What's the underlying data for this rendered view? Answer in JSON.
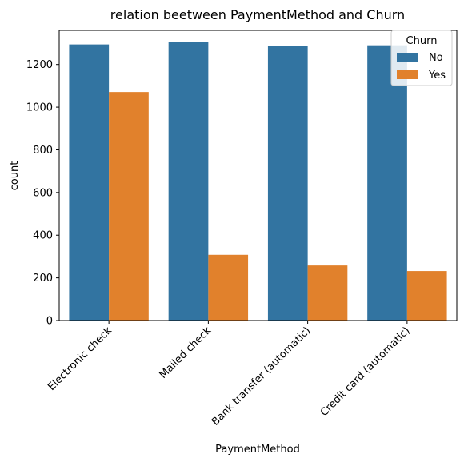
{
  "chart_data": {
    "type": "bar",
    "title": "relation beetween PaymentMethod and Churn",
    "xlabel": "PaymentMethod",
    "ylabel": "count",
    "categories": [
      "Electronic check",
      "Mailed check",
      "Bank transfer (automatic)",
      "Credit card (automatic)"
    ],
    "series": [
      {
        "name": "No",
        "color": "#3274a1",
        "values": [
          1294,
          1304,
          1286,
          1290
        ]
      },
      {
        "name": "Yes",
        "color": "#e1812c",
        "values": [
          1071,
          308,
          258,
          232
        ]
      }
    ],
    "ylim": [
      0,
      1360
    ],
    "yticks": [
      0,
      200,
      400,
      600,
      800,
      1000,
      1200
    ],
    "legend": {
      "title": "Churn",
      "position": "top-right"
    },
    "grid": false
  }
}
